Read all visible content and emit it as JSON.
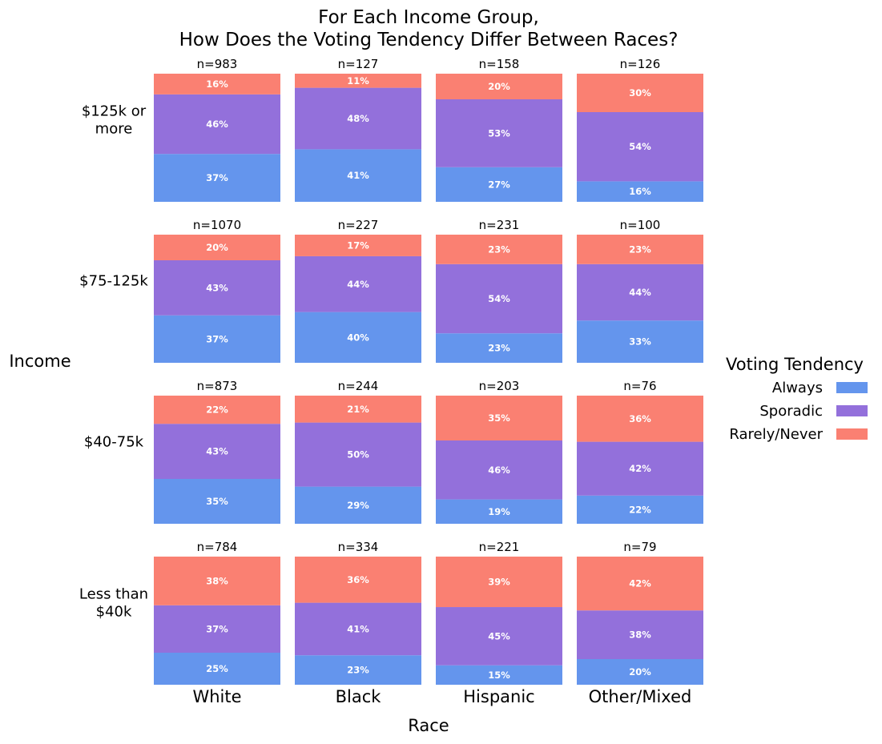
{
  "chart_data": {
    "type": "bar",
    "subtype": "stacked-100-percent-facet-grid",
    "title_lines": [
      "For Each Income Group,",
      "How Does the Voting Tendency Differ Between Races?"
    ],
    "xlabel": "Race",
    "ylabel": "Income",
    "columns": [
      "White",
      "Black",
      "Hispanic",
      "Other/Mixed"
    ],
    "rows": [
      {
        "label_lines": [
          "$125k or",
          "more"
        ]
      },
      {
        "label_lines": [
          "$75-125k"
        ]
      },
      {
        "label_lines": [
          "$40-75k"
        ]
      },
      {
        "label_lines": [
          "Less than",
          "$40k"
        ]
      }
    ],
    "legend": {
      "title": "Voting Tendency",
      "placement": "right",
      "items": [
        {
          "name": "Always",
          "color": "#6495ED"
        },
        {
          "name": "Sporadic",
          "color": "#9370DB"
        },
        {
          "name": "Rarely/Never",
          "color": "#FA8072"
        }
      ]
    },
    "cells": [
      [
        {
          "n": "n=983",
          "values": [
            37,
            46,
            16
          ]
        },
        {
          "n": "n=127",
          "values": [
            41,
            48,
            11
          ]
        },
        {
          "n": "n=158",
          "values": [
            27,
            53,
            20
          ]
        },
        {
          "n": "n=126",
          "values": [
            16,
            54,
            30
          ]
        }
      ],
      [
        {
          "n": "n=1070",
          "values": [
            37,
            43,
            20
          ]
        },
        {
          "n": "n=227",
          "values": [
            40,
            44,
            17
          ]
        },
        {
          "n": "n=231",
          "values": [
            23,
            54,
            23
          ]
        },
        {
          "n": "n=100",
          "values": [
            33,
            44,
            23
          ]
        }
      ],
      [
        {
          "n": "n=873",
          "values": [
            35,
            43,
            22
          ]
        },
        {
          "n": "n=244",
          "values": [
            29,
            50,
            21
          ]
        },
        {
          "n": "n=203",
          "values": [
            19,
            46,
            35
          ]
        },
        {
          "n": "n=76",
          "values": [
            22,
            42,
            36
          ]
        }
      ],
      [
        {
          "n": "n=784",
          "values": [
            25,
            37,
            38
          ]
        },
        {
          "n": "n=334",
          "values": [
            23,
            41,
            36
          ]
        },
        {
          "n": "n=221",
          "values": [
            15,
            45,
            39
          ]
        },
        {
          "n": "n=79",
          "values": [
            20,
            38,
            42
          ]
        }
      ]
    ]
  }
}
